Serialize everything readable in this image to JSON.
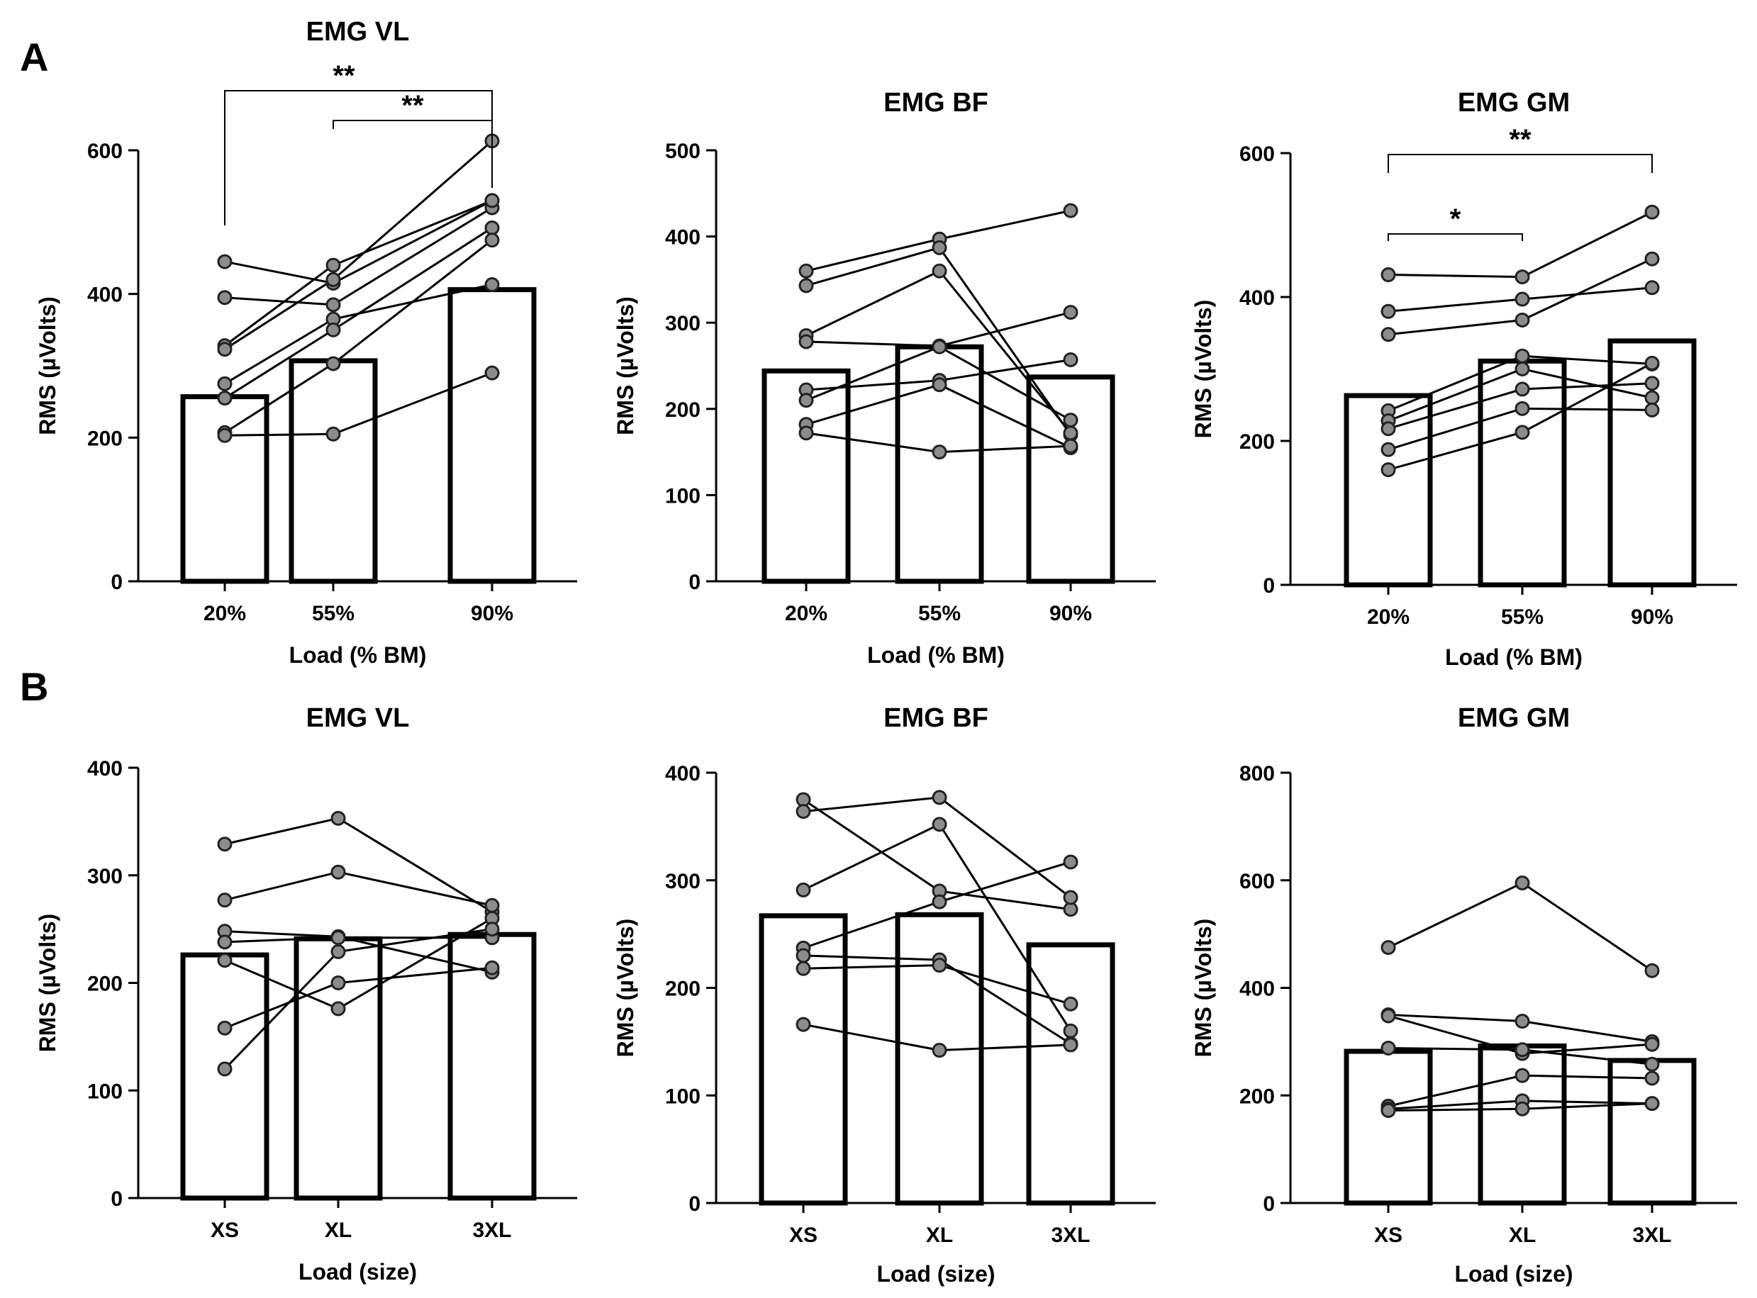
{
  "figure": {
    "panel_labels": [
      "A",
      "B"
    ],
    "colors": {
      "axis": "#000000",
      "bar_fill": "#ffffff",
      "bar_stroke": "#000000",
      "point_fill": "#8c8c8c",
      "point_stroke": "#222222",
      "line": "#000000"
    }
  },
  "chart_data": [
    {
      "id": "A-VL",
      "panel": "A",
      "type": "bar",
      "title": "EMG VL",
      "xlabel": "Load (% BM)",
      "ylabel": "RMS (µVolts)",
      "categories": [
        "20%",
        "55%",
        "90%"
      ],
      "ylim": [
        0,
        600
      ],
      "yticks": [
        0,
        200,
        400,
        600
      ],
      "means": [
        257,
        307,
        406
      ],
      "subjects": [
        [
          445,
          415,
          530
        ],
        [
          395,
          385,
          520
        ],
        [
          328,
          440,
          530
        ],
        [
          323,
          420,
          613
        ],
        [
          275,
          365,
          413
        ],
        [
          255,
          350,
          492
        ],
        [
          207,
          303,
          475
        ],
        [
          203,
          205,
          290
        ]
      ],
      "brackets": [
        {
          "from": "20%",
          "to": "90%",
          "label": "**"
        },
        {
          "from": "55%",
          "to": "90%",
          "label": "**"
        }
      ]
    },
    {
      "id": "A-BF",
      "panel": "A",
      "type": "bar",
      "title": "EMG BF",
      "xlabel": "Load (% BM)",
      "ylabel": "RMS (µVolts)",
      "categories": [
        "20%",
        "55%",
        "90%"
      ],
      "ylim": [
        0,
        500
      ],
      "yticks": [
        0,
        100,
        200,
        300,
        400,
        500
      ],
      "means": [
        244,
        272,
        237
      ],
      "subjects": [
        [
          360,
          397,
          430
        ],
        [
          343,
          387,
          170
        ],
        [
          285,
          360,
          172
        ],
        [
          278,
          273,
          312
        ],
        [
          222,
          233,
          257
        ],
        [
          210,
          272,
          187
        ],
        [
          182,
          228,
          155
        ],
        [
          172,
          150,
          157
        ]
      ],
      "brackets": []
    },
    {
      "id": "A-GM",
      "panel": "A",
      "type": "bar",
      "title": "EMG GM",
      "xlabel": "Load (% BM)",
      "ylabel": "RMS (µVolts)",
      "categories": [
        "20%",
        "55%",
        "90%"
      ],
      "ylim": [
        0,
        600
      ],
      "yticks": [
        0,
        200,
        400,
        600
      ],
      "means": [
        263,
        311,
        339
      ],
      "subjects": [
        [
          431,
          428,
          518
        ],
        [
          380,
          397,
          413
        ],
        [
          348,
          368,
          453
        ],
        [
          242,
          318,
          307
        ],
        [
          228,
          300,
          260
        ],
        [
          217,
          272,
          280
        ],
        [
          188,
          245,
          243
        ],
        [
          160,
          212,
          308
        ]
      ],
      "brackets": [
        {
          "from": "20%",
          "to": "90%",
          "label": "**"
        },
        {
          "from": "20%",
          "to": "55%",
          "label": "*"
        }
      ]
    },
    {
      "id": "B-VL",
      "panel": "B",
      "type": "bar",
      "title": "EMG VL",
      "xlabel": "Load (size)",
      "ylabel": "RMS (µVolts)",
      "categories": [
        "XS",
        "XL",
        "3XL"
      ],
      "ylim": [
        0,
        400
      ],
      "yticks": [
        0,
        100,
        200,
        300,
        400
      ],
      "means": [
        226,
        241,
        245
      ],
      "subjects": [
        [
          329,
          353,
          266
        ],
        [
          277,
          303,
          272
        ],
        [
          248,
          243,
          210
        ],
        [
          238,
          242,
          242
        ],
        [
          221,
          176,
          260
        ],
        [
          158,
          200,
          214
        ],
        [
          120,
          229,
          250
        ]
      ],
      "brackets": []
    },
    {
      "id": "B-BF",
      "panel": "B",
      "type": "bar",
      "title": "EMG BF",
      "xlabel": "Load (size)",
      "ylabel": "RMS (µVolts)",
      "categories": [
        "XS",
        "XL",
        "3XL"
      ],
      "ylim": [
        0,
        400
      ],
      "yticks": [
        0,
        100,
        200,
        300,
        400
      ],
      "means": [
        267,
        268,
        240
      ],
      "subjects": [
        [
          375,
          290,
          273
        ],
        [
          364,
          377,
          284
        ],
        [
          291,
          352,
          160
        ],
        [
          237,
          280,
          317
        ],
        [
          230,
          226,
          148
        ],
        [
          218,
          221,
          185
        ],
        [
          166,
          142,
          147
        ]
      ],
      "brackets": []
    },
    {
      "id": "B-GM",
      "panel": "B",
      "type": "bar",
      "title": "EMG GM",
      "xlabel": "Load (size)",
      "ylabel": "RMS (µVolts)",
      "categories": [
        "XS",
        "XL",
        "3XL"
      ],
      "ylim": [
        0,
        800
      ],
      "yticks": [
        0,
        200,
        400,
        600,
        800
      ],
      "means": [
        282,
        292,
        265
      ],
      "subjects": [
        [
          475,
          595,
          432
        ],
        [
          350,
          338,
          300
        ],
        [
          348,
          278,
          295
        ],
        [
          288,
          285,
          258
        ],
        [
          180,
          237,
          232
        ],
        [
          175,
          190,
          185
        ],
        [
          172,
          175,
          185
        ]
      ],
      "brackets": []
    }
  ]
}
